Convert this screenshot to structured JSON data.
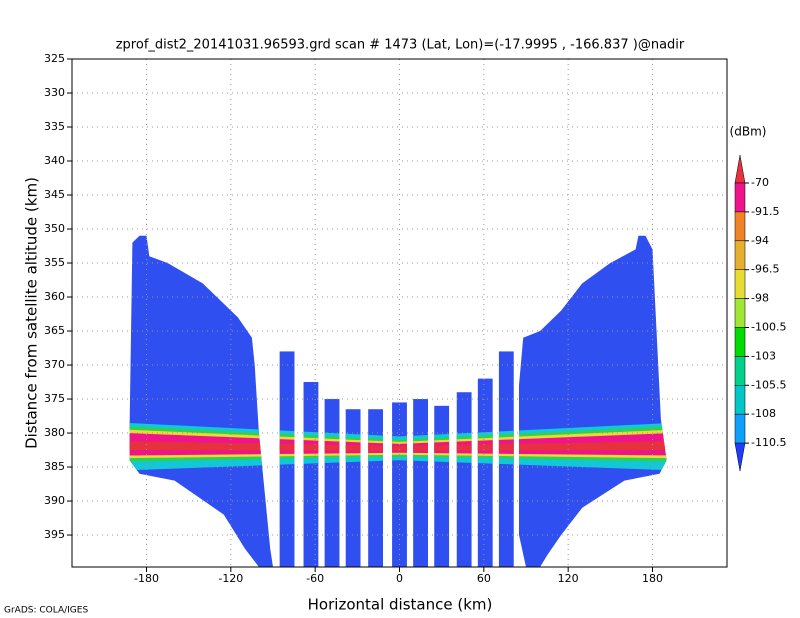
{
  "chart_data": {
    "type": "profile",
    "title": "zprof_dist2_20141031.96593.grd  scan # 1473  (Lat, Lon)=(-17.9995 , -166.837 )@nadir",
    "xlabel": "Horizontal distance (km)",
    "ylabel": "Distance from satellite altitude (km)",
    "footer": "GrADS: COLA/IGES",
    "xlim": [
      -233,
      233
    ],
    "ylim": [
      325,
      399.7
    ],
    "y_inverted": true,
    "xticks": [
      -180,
      -120,
      -60,
      0,
      60,
      120,
      180
    ],
    "yticks": [
      325,
      330,
      335,
      340,
      345,
      350,
      355,
      360,
      365,
      370,
      375,
      380,
      385,
      390,
      395
    ],
    "grid": true,
    "swath": {
      "color": "#2f4ff0",
      "blocks": [
        {
          "x": [
            -192,
            -190,
            -185,
            -180,
            -178,
            -165,
            -140,
            -125,
            -115,
            -105,
            -103,
            -100,
            -92,
            -90,
            -100,
            -110,
            -125,
            -160,
            -185,
            -192
          ],
          "y": [
            379,
            352,
            351,
            351,
            354,
            355,
            358,
            361,
            363,
            366,
            370,
            380,
            397,
            399.7,
            399.7,
            397,
            392,
            387,
            386,
            384
          ]
        },
        {
          "x": [
            85,
            88,
            100,
            115,
            130,
            150,
            168,
            170,
            175,
            180,
            186,
            190,
            185,
            160,
            130,
            115,
            105,
            100,
            90,
            85
          ],
          "y": [
            373,
            366,
            365,
            362,
            358,
            355,
            353,
            351,
            351,
            353,
            378,
            384,
            386,
            387,
            391,
            395,
            398,
            399.7,
            399.7,
            395
          ]
        }
      ],
      "columns": {
        "x": [
          -80,
          -63,
          -48,
          -33,
          -17,
          0,
          15,
          30,
          46,
          61,
          76
        ],
        "top": [
          368,
          372.5,
          375,
          376.5,
          376.5,
          375.5,
          375,
          376,
          374,
          372,
          368
        ]
      }
    },
    "bands": [
      {
        "color": "#10c8d8",
        "x": [
          -195,
          0,
          195,
          195,
          0,
          -195
        ],
        "y": [
          378.5,
          380.5,
          378.5,
          385.5,
          384,
          385.5
        ]
      },
      {
        "color": "#30d050",
        "x": [
          -195,
          0,
          195,
          195,
          0,
          -195
        ],
        "y": [
          379,
          381,
          379,
          384.2,
          383.5,
          384.2
        ]
      },
      {
        "color": "#e8dc30",
        "x": [
          -195,
          0,
          195,
          195,
          0,
          -195
        ],
        "y": [
          379.5,
          381.3,
          379.5,
          383.7,
          383.2,
          383.7
        ]
      },
      {
        "color": "#f0148c",
        "x": [
          -195,
          0,
          195,
          195,
          0,
          -195
        ],
        "y": [
          380,
          381.6,
          380,
          383.3,
          382.9,
          383.3
        ]
      },
      {
        "color": "#e6323c",
        "x": [
          -195,
          0,
          195,
          195,
          0,
          -195
        ],
        "y": [
          381.2,
          381.9,
          381.2,
          382.5,
          382.6,
          382.5
        ]
      }
    ],
    "colorbar": {
      "unit": "(dBm)",
      "levels": [
        -70,
        -91.5,
        -94,
        -96.5,
        -98,
        -100.5,
        -103,
        -105.5,
        -108,
        -110.5
      ],
      "colors": [
        "#e6323c",
        "#f0148c",
        "#f08228",
        "#e6af2d",
        "#e6dc32",
        "#a0e632",
        "#00dc00",
        "#00d28c",
        "#00c8c8",
        "#0ea0ff",
        "#1e3cff"
      ]
    }
  }
}
